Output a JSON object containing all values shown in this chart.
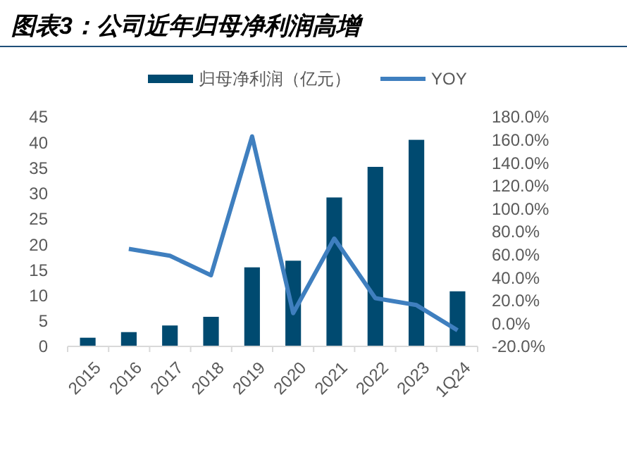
{
  "chart_data": {
    "type": "bar",
    "title": "图表3：公司近年归母净利润高增",
    "categories": [
      "2015",
      "2016",
      "2017",
      "2018",
      "2019",
      "2020",
      "2021",
      "2022",
      "2023",
      "1Q24"
    ],
    "series": [
      {
        "name": "归母净利润（亿元）",
        "color": "#004a70",
        "values": [
          1.7,
          2.8,
          4.1,
          5.8,
          15.5,
          16.8,
          29.2,
          35.2,
          40.5,
          10.8
        ]
      },
      {
        "name": "YOY",
        "type": "line",
        "axis": "y2",
        "color": "#3f7fbf",
        "values": [
          null,
          65,
          59,
          42,
          163,
          9,
          74,
          22,
          16,
          -6
        ]
      }
    ],
    "ylim": [
      0,
      45
    ],
    "yticks": [
      0,
      5,
      10,
      15,
      20,
      25,
      30,
      35,
      40,
      45
    ],
    "y2lim": [
      -20,
      180
    ],
    "y2ticks": [
      {
        "value": -20,
        "label": "-20.0%"
      },
      {
        "value": 0,
        "label": "0.0%"
      },
      {
        "value": 20,
        "label": "20.0%"
      },
      {
        "value": 40,
        "label": "40.0%"
      },
      {
        "value": 60,
        "label": "60.0%"
      },
      {
        "value": 80,
        "label": "80.0%"
      },
      {
        "value": 100,
        "label": "100.0%"
      },
      {
        "value": 120,
        "label": "120.0%"
      },
      {
        "value": 140,
        "label": "140.0%"
      },
      {
        "value": 160,
        "label": "160.0%"
      },
      {
        "value": 180,
        "label": "180.0%"
      }
    ],
    "legend": "top",
    "grid": false,
    "marker": "none",
    "line_style": "solid"
  }
}
